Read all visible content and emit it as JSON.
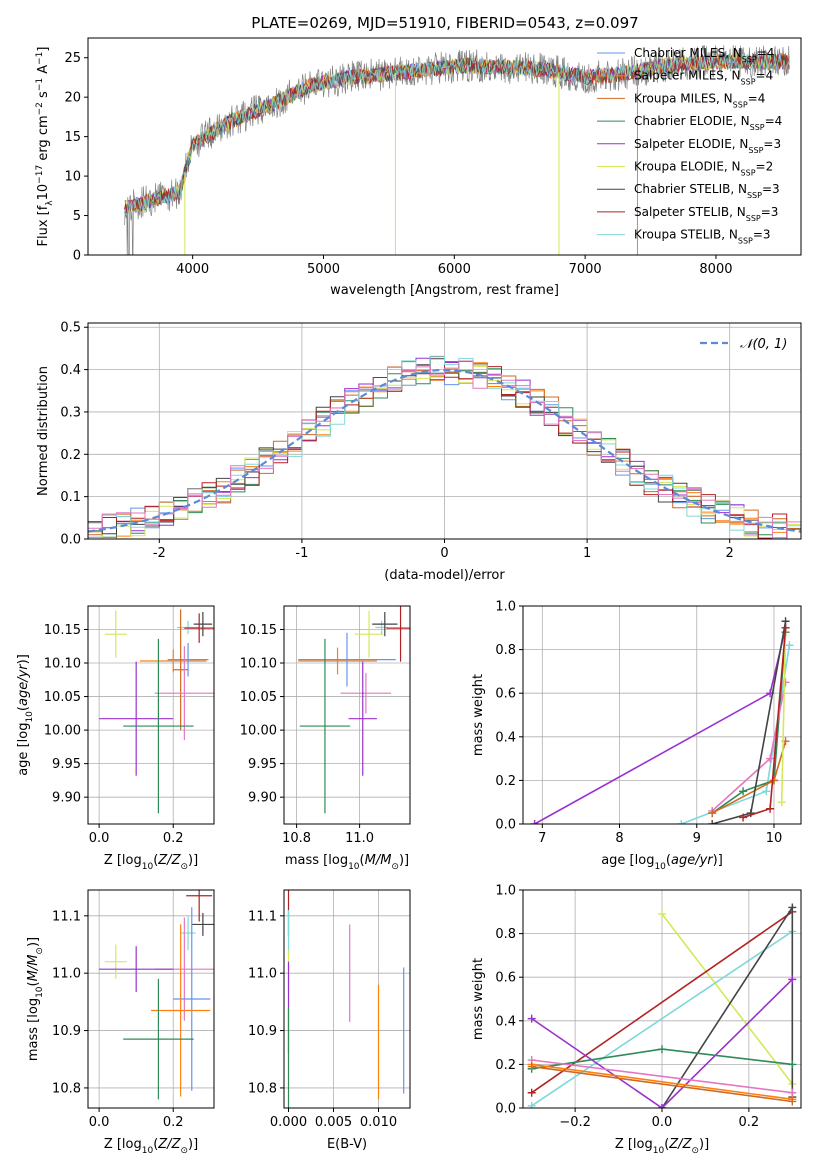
{
  "colors": {
    "chabrier_miles": "#6495ed",
    "salpeter_miles": "#ff7f0e",
    "kroupa_miles": "#d2691e",
    "chabrier_elodie": "#2e8b57",
    "salpeter_elodie": "#9932cc",
    "kroupa_elodie": "#d4e85a",
    "chabrier_stelib": "#444444",
    "salpeter_stelib": "#b22222",
    "kroupa_stelib": "#7fd8d8",
    "pink": "#e377c2"
  },
  "chart_data": [
    {
      "id": "spectrum",
      "type": "line",
      "title": "PLATE=0269, MJD=51910, FIBERID=0543, z=0.097",
      "xlabel": "wavelength [Angstrom, rest frame]",
      "ylabel": "Flux [f_λ10^-17 erg cm^-2 s^-1 A^-1]",
      "xlim": [
        3200,
        8650
      ],
      "ylim": [
        0,
        27.5
      ],
      "xticks": [
        4000,
        5000,
        6000,
        7000,
        8000
      ],
      "yticks": [
        0,
        5,
        10,
        15,
        20,
        25
      ],
      "grid": false,
      "legend_position": "upper-right",
      "legend": [
        {
          "label": "Chabrier MILES, N",
          "sub": "SSP",
          "val": "=4",
          "color": "#6495ed"
        },
        {
          "label": "Salpeter MILES, N",
          "sub": "SSP",
          "val": "=4",
          "color": "#ff7f0e"
        },
        {
          "label": "Kroupa MILES, N",
          "sub": "SSP",
          "val": "=4",
          "color": "#d2691e"
        },
        {
          "label": "Chabrier ELODIE, N",
          "sub": "SSP",
          "val": "=4",
          "color": "#2e8b57"
        },
        {
          "label": "Salpeter ELODIE, N",
          "sub": "SSP",
          "val": "=3",
          "color": "#9932cc"
        },
        {
          "label": "Kroupa ELODIE, N",
          "sub": "SSP",
          "val": "=2",
          "color": "#d4e85a"
        },
        {
          "label": "Chabrier STELIB, N",
          "sub": "SSP",
          "val": "=3",
          "color": "#444444"
        },
        {
          "label": "Salpeter STELIB, N",
          "sub": "SSP",
          "val": "=3",
          "color": "#b22222"
        },
        {
          "label": "Kroupa STELIB, N",
          "sub": "SSP",
          "val": "=3",
          "color": "#7fd8d8"
        }
      ],
      "data_envelope": {
        "x": [
          3500,
          3700,
          3900,
          4000,
          4300,
          4600,
          4900,
          5200,
          5500,
          5800,
          6100,
          6400,
          6700,
          7000,
          7300,
          7600,
          7900,
          8200,
          8500
        ],
        "y": [
          6,
          7,
          8,
          14,
          17,
          19,
          21.5,
          22.5,
          23,
          23.5,
          24,
          23.8,
          23.5,
          22.5,
          23,
          24,
          24.5,
          24.5,
          24.5
        ]
      },
      "vertical_dips": [
        {
          "x": 3940,
          "color": "#d4e85a"
        },
        {
          "x": 6800,
          "color": "#d4e85a"
        },
        {
          "x": 5550,
          "color": "#d4e85a"
        },
        {
          "x": 7400,
          "color": "#ff7f0e"
        }
      ]
    },
    {
      "id": "residuals",
      "type": "histogram",
      "xlabel": "(data-model)/error",
      "ylabel": "Normed distribution",
      "xlim": [
        -2.5,
        2.5
      ],
      "ylim": [
        0,
        0.51
      ],
      "xticks": [
        -2,
        -1,
        0,
        1,
        2
      ],
      "yticks": [
        0.0,
        0.1,
        0.2,
        0.3,
        0.4,
        0.5
      ],
      "grid": true,
      "legend_position": "upper-right",
      "legend": [
        {
          "label": "𝒩(0, 1)",
          "color": "#5b8ad8",
          "style": "dashed"
        }
      ],
      "bin_edges_start": -2.5,
      "bin_width": 0.1
    },
    {
      "id": "age_vs_Z",
      "type": "scatter",
      "xlabel": "Z [log10(Z/Z⊙)]",
      "ylabel": "age  [log10(age/yr)]",
      "xlim": [
        -0.03,
        0.31
      ],
      "ylim": [
        9.86,
        10.185
      ],
      "xticks": [
        0.0,
        0.2
      ],
      "yticks": [
        9.9,
        9.95,
        10.0,
        10.05,
        10.1,
        10.15
      ],
      "grid": true
    },
    {
      "id": "age_vs_mass",
      "type": "scatter",
      "xlabel": "mass [log10(M/M⊙)]",
      "ylabel": "",
      "xlim": [
        10.76,
        11.16
      ],
      "ylim": [
        9.86,
        10.185
      ],
      "xticks": [
        10.8,
        11.0
      ],
      "yticks": [
        9.9,
        9.95,
        10.0,
        10.05,
        10.1,
        10.15
      ],
      "grid": true
    },
    {
      "id": "weight_vs_age",
      "type": "line",
      "xlabel": "age  [log10(age/yr)]",
      "ylabel": "mass weight",
      "xlim": [
        6.75,
        10.35
      ],
      "ylim": [
        0,
        1.0
      ],
      "xticks": [
        7,
        8,
        9,
        10
      ],
      "yticks": [
        0.0,
        0.2,
        0.4,
        0.6,
        0.8,
        1.0
      ],
      "grid": true
    },
    {
      "id": "mass_vs_Z",
      "type": "scatter",
      "xlabel": "Z [log10(Z/Z⊙)]",
      "ylabel": "mass [log10(M/M⊙)]",
      "xlim": [
        -0.03,
        0.31
      ],
      "ylim": [
        10.765,
        11.145
      ],
      "xticks": [
        0.0,
        0.2
      ],
      "yticks": [
        10.8,
        10.9,
        11.0,
        11.1
      ],
      "grid": true
    },
    {
      "id": "mass_vs_ebv",
      "type": "scatter",
      "xlabel": "E(B-V)",
      "ylabel": "",
      "xlim": [
        -0.0005,
        0.0135
      ],
      "ylim": [
        10.765,
        11.145
      ],
      "xticks": [
        0.0,
        0.005,
        0.01
      ],
      "xticklabels": [
        "0.000",
        "0.005",
        "0.010"
      ],
      "yticks": [
        10.8,
        10.9,
        11.0,
        11.1
      ],
      "grid": true
    },
    {
      "id": "weight_vs_Z",
      "type": "line",
      "xlabel": "Z [log10(Z/Z⊙)]",
      "ylabel": "mass weight",
      "xlim": [
        -0.32,
        0.32
      ],
      "ylim": [
        0,
        1.0
      ],
      "xticks": [
        -0.2,
        0.0,
        0.2
      ],
      "xticklabels": [
        "−0.2",
        "0.0",
        "0.2"
      ],
      "yticks": [
        0.0,
        0.2,
        0.4,
        0.6,
        0.8,
        1.0
      ],
      "grid": true
    }
  ],
  "points": {
    "age_Z": [
      {
        "c": "#d4e85a",
        "x": 0.045,
        "xe": 0.03,
        "y": 10.143,
        "ye": 0.035
      },
      {
        "c": "#7fd8d8",
        "x": 0.24,
        "xe": 0.03,
        "y": 10.153,
        "ye": 0.01
      },
      {
        "c": "#444444",
        "x": 0.28,
        "xe": 0.025,
        "y": 10.158,
        "ye": 0.018
      },
      {
        "c": "#b22222",
        "x": 0.27,
        "xe": 0.04,
        "y": 10.152,
        "ye": 0.022
      },
      {
        "c": "#ff7f0e",
        "x": 0.2,
        "xe": 0.09,
        "y": 10.103,
        "ye": 0.017
      },
      {
        "c": "#6495ed",
        "x": 0.24,
        "xe": 0.055,
        "y": 10.105,
        "ye": 0.025
      },
      {
        "c": "#d2691e",
        "x": 0.22,
        "xe": 0.02,
        "y": 10.09,
        "ye": 0.09
      },
      {
        "c": "#e377c2",
        "x": 0.23,
        "xe": 0.08,
        "y": 10.055,
        "ye": 0.07
      },
      {
        "c": "#9932cc",
        "x": 0.1,
        "xe": 0.1,
        "y": 10.017,
        "ye": 0.085
      },
      {
        "c": "#2e8b57",
        "x": 0.16,
        "xe": 0.095,
        "y": 10.006,
        "ye": 0.13
      }
    ],
    "age_mass": [
      {
        "c": "#d4e85a",
        "x": 11.03,
        "xe": 0.045,
        "y": 10.143,
        "ye": 0.035
      },
      {
        "c": "#7fd8d8",
        "x": 11.07,
        "xe": 0.02,
        "y": 10.153,
        "ye": 0.01
      },
      {
        "c": "#444444",
        "x": 11.08,
        "xe": 0.04,
        "y": 10.158,
        "ye": 0.018
      },
      {
        "c": "#b22222",
        "x": 11.13,
        "xe": 0.045,
        "y": 10.152,
        "ye": 0.05
      },
      {
        "c": "#ff7f0e",
        "x": 10.93,
        "xe": 0.125,
        "y": 10.103,
        "ye": 0.02
      },
      {
        "c": "#6495ed",
        "x": 10.96,
        "xe": 0.155,
        "y": 10.105,
        "ye": 0.04
      },
      {
        "c": "#e377c2",
        "x": 11.02,
        "xe": 0.08,
        "y": 10.055,
        "ye": 0.03
      },
      {
        "c": "#9932cc",
        "x": 11.01,
        "xe": 0.045,
        "y": 10.017,
        "ye": 0.085
      },
      {
        "c": "#2e8b57",
        "x": 10.89,
        "xe": 0.08,
        "y": 10.006,
        "ye": 0.13
      }
    ],
    "mass_Z": [
      {
        "c": "#d4e85a",
        "x": 0.045,
        "xe": 0.03,
        "y": 11.02,
        "ye": 0.03
      },
      {
        "c": "#7fd8d8",
        "x": 0.24,
        "xe": 0.02,
        "y": 11.07,
        "ye": 0.03
      },
      {
        "c": "#444444",
        "x": 0.28,
        "xe": 0.03,
        "y": 11.085,
        "ye": 0.02
      },
      {
        "c": "#b22222",
        "x": 0.27,
        "xe": 0.035,
        "y": 11.135,
        "ye": 0.045
      },
      {
        "c": "#e377c2",
        "x": 0.23,
        "xe": 0.08,
        "y": 11.007,
        "ye": 0.09
      },
      {
        "c": "#9932cc",
        "x": 0.1,
        "xe": 0.1,
        "y": 11.007,
        "ye": 0.04
      },
      {
        "c": "#6495ed",
        "x": 0.25,
        "xe": 0.05,
        "y": 10.955,
        "ye": 0.16
      },
      {
        "c": "#ff7f0e",
        "x": 0.22,
        "xe": 0.08,
        "y": 10.935,
        "ye": 0.15
      },
      {
        "c": "#2e8b57",
        "x": 0.16,
        "xe": 0.095,
        "y": 10.885,
        "ye": 0.105
      }
    ],
    "mass_ebv": [
      {
        "c": "#b22222",
        "x": 0.0,
        "y": 11.11,
        "ye": 0.045
      },
      {
        "c": "#7fd8d8",
        "x": 0.0,
        "y": 11.07,
        "ye": 0.04
      },
      {
        "c": "#d4e85a",
        "x": 0.0,
        "y": 11.005,
        "ye": 0.035
      },
      {
        "c": "#9932cc",
        "x": 0.0,
        "y": 10.94,
        "ye": 0.08
      },
      {
        "c": "#2e8b57",
        "x": 0.0,
        "y": 10.85,
        "ye": 0.09
      },
      {
        "c": "#e377c2",
        "x": 0.0068,
        "y": 11.0,
        "ye": 0.085
      },
      {
        "c": "#ff7f0e",
        "x": 0.01,
        "y": 10.88,
        "ye": 0.1
      },
      {
        "c": "#6495ed",
        "x": 0.0128,
        "y": 10.9,
        "ye": 0.11
      }
    ],
    "weight_age": [
      {
        "c": "#9932cc",
        "x": [
          6.9,
          9.95,
          10.15
        ],
        "y": [
          0.0,
          0.6,
          0.9
        ]
      },
      {
        "c": "#7fd8d8",
        "x": [
          8.8,
          9.9,
          10.2
        ],
        "y": [
          0.0,
          0.15,
          0.82
        ]
      },
      {
        "c": "#2e8b57",
        "x": [
          9.2,
          9.6,
          10.0,
          10.15
        ],
        "y": [
          0.05,
          0.15,
          0.2,
          0.88
        ]
      },
      {
        "c": "#e377c2",
        "x": [
          9.2,
          9.95,
          10.15
        ],
        "y": [
          0.06,
          0.3,
          0.65
        ]
      },
      {
        "c": "#d2691e",
        "x": [
          9.2,
          10.0,
          10.15
        ],
        "y": [
          0.05,
          0.2,
          0.38
        ]
      },
      {
        "c": "#d4e85a",
        "x": [
          10.1,
          10.15
        ],
        "y": [
          0.1,
          0.9
        ]
      },
      {
        "c": "#444444",
        "x": [
          9.2,
          9.7,
          10.15
        ],
        "y": [
          0.0,
          0.05,
          0.93
        ]
      },
      {
        "c": "#b22222",
        "x": [
          9.6,
          9.95,
          10.15
        ],
        "y": [
          0.03,
          0.07,
          0.9
        ]
      }
    ],
    "weight_Z": [
      {
        "c": "#d4e85a",
        "x": [
          0.0,
          0.3
        ],
        "y": [
          0.89,
          0.11
        ]
      },
      {
        "c": "#b22222",
        "x": [
          -0.3,
          0.3
        ],
        "y": [
          0.07,
          0.9
        ]
      },
      {
        "c": "#7fd8d8",
        "x": [
          -0.3,
          0.3
        ],
        "y": [
          0.01,
          0.81
        ]
      },
      {
        "c": "#444444",
        "x": [
          0.0,
          0.3,
          0.3
        ],
        "y": [
          0.0,
          0.92,
          0.05
        ]
      },
      {
        "c": "#9932cc",
        "x": [
          -0.3,
          0.0,
          0.3
        ],
        "y": [
          0.41,
          0.0,
          0.59
        ]
      },
      {
        "c": "#2e8b57",
        "x": [
          -0.3,
          0.0,
          0.3
        ],
        "y": [
          0.18,
          0.27,
          0.2
        ]
      },
      {
        "c": "#e377c2",
        "x": [
          -0.3,
          0.3
        ],
        "y": [
          0.22,
          0.07
        ]
      },
      {
        "c": "#ff7f0e",
        "x": [
          -0.3,
          0.3
        ],
        "y": [
          0.2,
          0.04
        ]
      },
      {
        "c": "#d2691e",
        "x": [
          -0.3,
          0.3
        ],
        "y": [
          0.19,
          0.03
        ]
      }
    ]
  }
}
